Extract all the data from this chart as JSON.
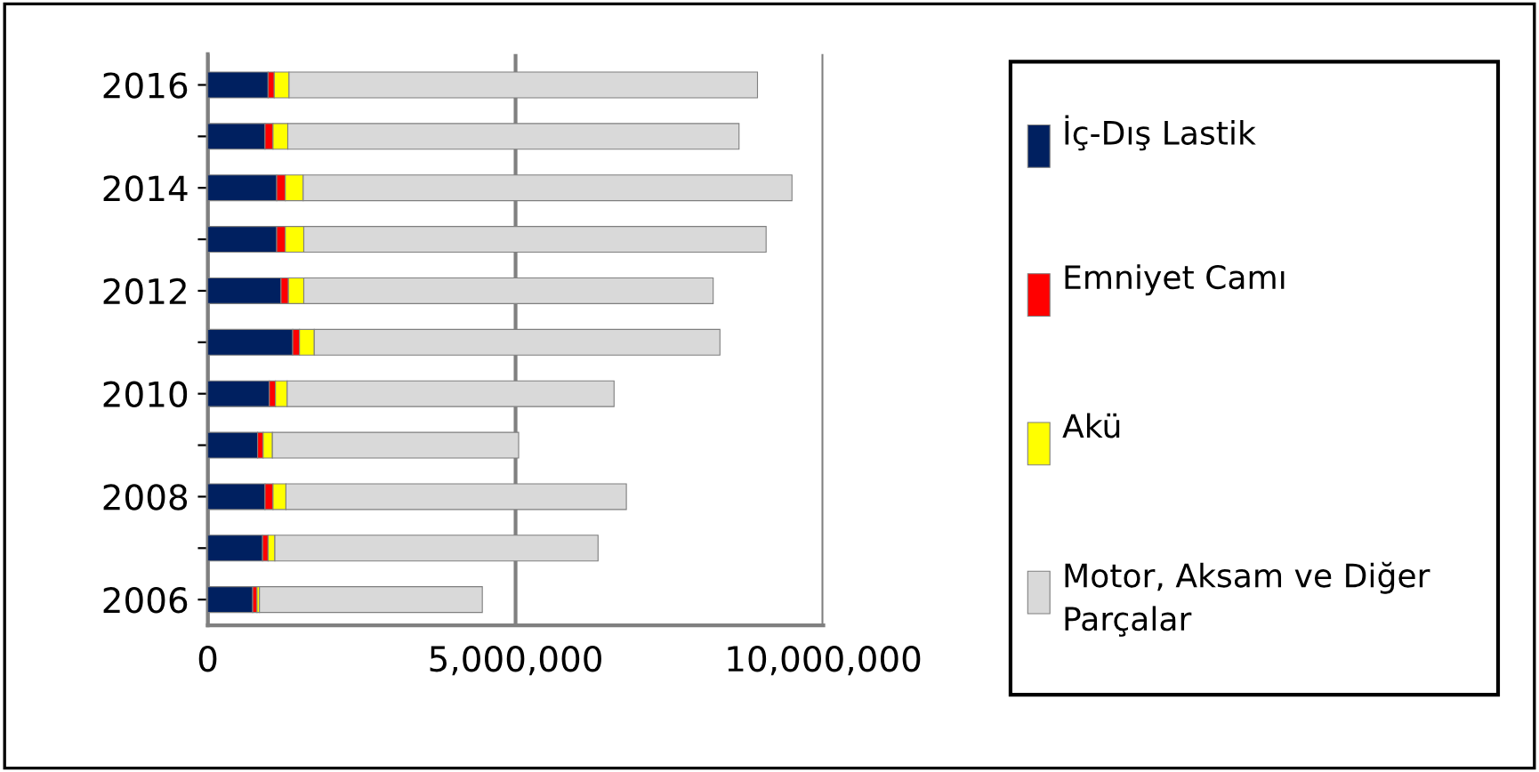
{
  "chart_data": {
    "type": "bar",
    "orientation": "horizontal",
    "stacked": true,
    "categories": [
      "2016",
      null,
      "2014",
      null,
      "2012",
      null,
      "2010",
      null,
      "2008",
      null,
      "2006"
    ],
    "series": [
      {
        "name": "İç-Dış Lastik",
        "color": "#002060",
        "values": [
          980000,
          930000,
          1120000,
          1120000,
          1190000,
          1380000,
          1000000,
          810000,
          930000,
          890000,
          730000
        ]
      },
      {
        "name": "Emniyet Camı",
        "color": "#ff0000",
        "values": [
          100000,
          130000,
          140000,
          140000,
          120000,
          110000,
          100000,
          90000,
          130000,
          90000,
          70000
        ]
      },
      {
        "name": "Akü",
        "color": "#ffff00",
        "values": [
          240000,
          240000,
          290000,
          300000,
          250000,
          240000,
          190000,
          150000,
          210000,
          110000,
          40000
        ]
      },
      {
        "name": "Motor, Aksam ve Diğer Parçalar",
        "color": "#d9d9d9",
        "values": [
          7610000,
          7330000,
          7940000,
          7510000,
          6650000,
          6590000,
          5310000,
          4000000,
          5530000,
          5250000,
          3620000
        ]
      }
    ],
    "xlim": [
      0,
      10000000
    ],
    "xticks": [
      {
        "value": 0,
        "label": "0"
      },
      {
        "value": 5000000,
        "label": "5,000,000"
      },
      {
        "value": 10000000,
        "label": "10,000,000"
      }
    ],
    "grid": "x",
    "legend": "right"
  }
}
